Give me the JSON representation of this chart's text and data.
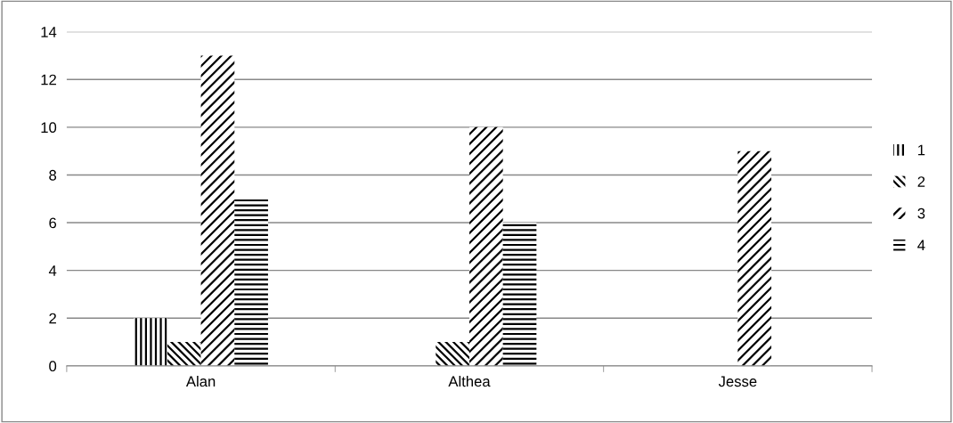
{
  "chart_data": {
    "type": "bar",
    "categories": [
      "Alan",
      "Althea",
      "Jesse"
    ],
    "series": [
      {
        "name": "1",
        "color": "#000000",
        "values": [
          2,
          null,
          null
        ]
      },
      {
        "name": "2",
        "color": "#000000",
        "values": [
          1,
          1,
          null
        ]
      },
      {
        "name": "3",
        "color": "#000000",
        "values": [
          13,
          10,
          9
        ]
      },
      {
        "name": "4",
        "color": "#000000",
        "values": [
          7,
          6,
          null
        ]
      }
    ],
    "ylim": [
      0,
      14
    ],
    "yticks": [
      0,
      2,
      4,
      6,
      8,
      10,
      12,
      14
    ],
    "grid": "y",
    "legend": "right"
  }
}
